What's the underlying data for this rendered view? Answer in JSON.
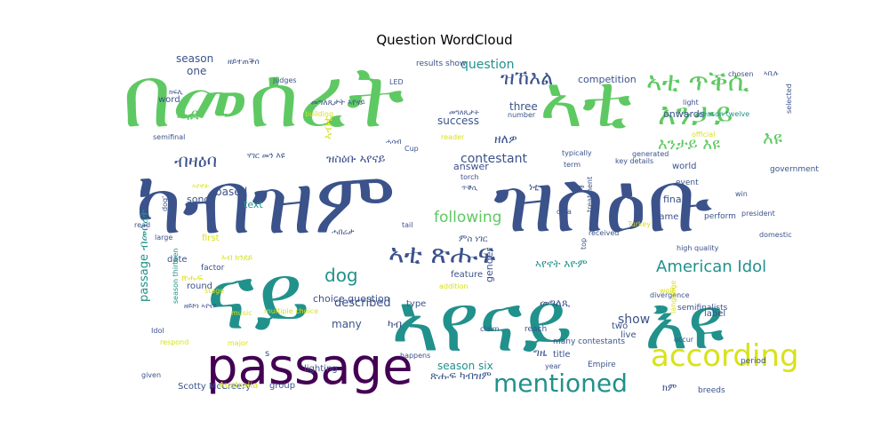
{
  "chart_data": {
    "type": "wordcloud",
    "title": "Question WordCloud",
    "colormap": "viridis",
    "words": [
      {
        "text": "በመሰረት",
        "weight": 100,
        "color": "#5ec962"
      },
      {
        "text": "ኣቲ",
        "weight": 95,
        "color": "#5ec962"
      },
      {
        "text": "ካብዝም",
        "weight": 98,
        "color": "#3b528b"
      },
      {
        "text": "ዝስዕቡ",
        "weight": 98,
        "color": "#3b528b"
      },
      {
        "text": "ናይ",
        "weight": 90,
        "color": "#21918c"
      },
      {
        "text": "ኣየናይ",
        "weight": 88,
        "color": "#21918c"
      },
      {
        "text": "እዩ",
        "weight": 80,
        "color": "#21918c"
      },
      {
        "text": "passage",
        "weight": 62,
        "color": "#440154"
      },
      {
        "text": "according",
        "weight": 38,
        "color": "#d8e219"
      },
      {
        "text": "mentioned",
        "weight": 36,
        "color": "#21918c"
      },
      {
        "text": "ኣቲ ጥቕሲ",
        "weight": 30,
        "color": "#5ec962"
      },
      {
        "text": "እንታይ",
        "weight": 30,
        "color": "#5ec962"
      },
      {
        "text": "እዩ",
        "weight": 28,
        "color": "#5ec962"
      },
      {
        "text": "ኣቲ ጽሑፍ",
        "weight": 26,
        "color": "#3b528b"
      },
      {
        "text": "American Idol",
        "weight": 22,
        "color": "#21918c"
      },
      {
        "text": "ዝኸእል",
        "weight": 20,
        "color": "#3b528b"
      },
      {
        "text": "እንታይ እዩ",
        "weight": 18,
        "color": "#5ec962"
      },
      {
        "text": "following",
        "weight": 18,
        "color": "#5ec962"
      },
      {
        "text": "ብዛዕባ",
        "weight": 18,
        "color": "#3b528b"
      },
      {
        "text": "passage ብመሰረት",
        "weight": 16,
        "color": "#21918c"
      },
      {
        "text": "dog",
        "weight": 16,
        "color": "#21918c"
      },
      {
        "text": "question",
        "weight": 14,
        "color": "#21918c"
      },
      {
        "text": "contestant",
        "weight": 13,
        "color": "#3b528b"
      },
      {
        "text": "ዘለዎ",
        "weight": 13,
        "color": "#3b528b"
      },
      {
        "text": "ዝስዕቡ ኣየናይ",
        "weight": 13,
        "color": "#3b528b"
      },
      {
        "text": "ሓደ",
        "weight": 13,
        "color": "#5ec962"
      },
      {
        "text": "ኣብቲ",
        "weight": 12,
        "color": "#d8e219"
      },
      {
        "text": "described",
        "weight": 12,
        "color": "#3b528b"
      },
      {
        "text": "ኣየኖት እዮም",
        "weight": 12,
        "color": "#21918c"
      },
      {
        "text": "show",
        "weight": 12,
        "color": "#3b528b"
      },
      {
        "text": "season six",
        "weight": 11,
        "color": "#21918c"
      },
      {
        "text": "choice question",
        "weight": 11,
        "color": "#3b528b"
      },
      {
        "text": "መግለጺ",
        "weight": 11,
        "color": "#3b528b"
      },
      {
        "text": "ጽሑፍ ካብዝም",
        "weight": 10,
        "color": "#3b528b"
      },
      {
        "text": "many",
        "weight": 10,
        "color": "#3b528b"
      },
      {
        "text": "season",
        "weight": 10,
        "color": "#3b528b"
      },
      {
        "text": "one",
        "weight": 10,
        "color": "#3b528b"
      },
      {
        "text": "word",
        "weight": 9,
        "color": "#3b528b"
      },
      {
        "text": "three",
        "weight": 8,
        "color": "#3b528b"
      },
      {
        "text": "success",
        "weight": 9,
        "color": "#3b528b"
      },
      {
        "text": "onwards",
        "weight": 9,
        "color": "#3b528b"
      },
      {
        "text": "final",
        "weight": 9,
        "color": "#3b528b"
      },
      {
        "text": "world",
        "weight": 9,
        "color": "#3b528b"
      },
      {
        "text": "song",
        "weight": 8,
        "color": "#3b528b"
      },
      {
        "text": "text",
        "weight": 9,
        "color": "#21918c"
      },
      {
        "text": "first",
        "weight": 9,
        "color": "#d8e219"
      },
      {
        "text": "based",
        "weight": 8,
        "color": "#3b528b"
      },
      {
        "text": "ካብ",
        "weight": 9,
        "color": "#3b528b"
      },
      {
        "text": "ነቲ",
        "weight": 9,
        "color": "#3b528b"
      },
      {
        "text": "ግዜ",
        "weight": 9,
        "color": "#3b528b"
      },
      {
        "text": "ክም",
        "weight": 9,
        "color": "#3b528b"
      },
      {
        "text": "name",
        "weight": 9,
        "color": "#3b528b"
      },
      {
        "text": "gender",
        "weight": 8,
        "color": "#3b528b"
      },
      {
        "text": "answer",
        "weight": 8,
        "color": "#3b528b"
      },
      {
        "text": "group",
        "weight": 8,
        "color": "#3b528b"
      },
      {
        "text": "Scotty McCreery",
        "weight": 7,
        "color": "#3b528b"
      },
      {
        "text": "ሃገር መን እዩ",
        "weight": 7,
        "color": "#3b528b"
      },
      {
        "text": "መግለጺታት ኣየናይ",
        "weight": 7,
        "color": "#3b528b"
      },
      {
        "text": "ዘይተጠቕሰ",
        "weight": 6,
        "color": "#3b528b"
      },
      {
        "text": "results show",
        "weight": 6,
        "color": "#3b528b"
      },
      {
        "text": "competition",
        "weight": 6,
        "color": "#3b528b"
      },
      {
        "text": "round",
        "weight": 7,
        "color": "#3b528b"
      },
      {
        "text": "date",
        "weight": 7,
        "color": "#3b528b"
      },
      {
        "text": "factor",
        "weight": 7,
        "color": "#3b528b"
      },
      {
        "text": "feature",
        "weight": 6,
        "color": "#3b528b"
      },
      {
        "text": "title",
        "weight": 7,
        "color": "#3b528b"
      },
      {
        "text": "two",
        "weight": 7,
        "color": "#3b528b"
      },
      {
        "text": "live",
        "weight": 7,
        "color": "#3b528b"
      },
      {
        "text": "label",
        "weight": 7,
        "color": "#3b528b"
      },
      {
        "text": "type",
        "weight": 7,
        "color": "#3b528b"
      },
      {
        "text": "reach",
        "weight": 7,
        "color": "#3b528b"
      },
      {
        "text": "lighting",
        "weight": 7,
        "color": "#3b528b"
      },
      {
        "text": "many contestants",
        "weight": 6,
        "color": "#3b528b"
      },
      {
        "text": "Empire",
        "weight": 6,
        "color": "#3b528b"
      },
      {
        "text": "period",
        "weight": 6,
        "color": "#3b528b"
      },
      {
        "text": "breeds",
        "weight": 6,
        "color": "#3b528b"
      },
      {
        "text": "semifinalists",
        "weight": 6,
        "color": "#3b528b"
      },
      {
        "text": "perform",
        "weight": 6,
        "color": "#3b528b"
      },
      {
        "text": "event",
        "weight": 6,
        "color": "#3b528b"
      },
      {
        "text": "government",
        "weight": 6,
        "color": "#3b528b"
      },
      {
        "text": "key details",
        "weight": 6,
        "color": "#3b528b"
      },
      {
        "text": "received",
        "weight": 6,
        "color": "#3b528b"
      },
      {
        "text": "year",
        "weight": 6,
        "color": "#3b528b"
      },
      {
        "text": "term",
        "weight": 6,
        "color": "#3b528b"
      },
      {
        "text": "win",
        "weight": 5,
        "color": "#3b528b"
      },
      {
        "text": "diva",
        "weight": 5,
        "color": "#3b528b"
      },
      {
        "text": "tail",
        "weight": 5,
        "color": "#3b528b"
      },
      {
        "text": "treatment",
        "weight": 5,
        "color": "#3b528b"
      },
      {
        "text": "high quality",
        "weight": 5,
        "color": "#3b528b"
      },
      {
        "text": "season twelve",
        "weight": 5,
        "color": "#21918c"
      },
      {
        "text": "season thirteen",
        "weight": 5,
        "color": "#21918c"
      },
      {
        "text": "multiple choice",
        "weight": 5,
        "color": "#d8e219"
      },
      {
        "text": "Idol",
        "weight": 5,
        "color": "#3b528b"
      },
      {
        "text": "music",
        "weight": 5,
        "color": "#d8e219"
      },
      {
        "text": "stage",
        "weight": 5,
        "color": "#d8e219"
      },
      {
        "text": "respond",
        "weight": 5,
        "color": "#d8e219"
      },
      {
        "text": "claim",
        "weight": 5,
        "color": "#3b528b"
      },
      {
        "text": "read",
        "weight": 5,
        "color": "#3b528b"
      },
      {
        "text": "large",
        "weight": 5,
        "color": "#3b528b"
      },
      {
        "text": "reader",
        "weight": 5,
        "color": "#d8e219"
      },
      {
        "text": "Cup",
        "weight": 5,
        "color": "#3b528b"
      },
      {
        "text": "torch",
        "weight": 5,
        "color": "#3b528b"
      },
      {
        "text": "typically",
        "weight": 5,
        "color": "#3b528b"
      },
      {
        "text": "generated",
        "weight": 5,
        "color": "#3b528b"
      },
      {
        "text": "light",
        "weight": 5,
        "color": "#3b528b"
      },
      {
        "text": "chosen",
        "weight": 5,
        "color": "#3b528b"
      },
      {
        "text": "judges",
        "weight": 5,
        "color": "#3b528b"
      },
      {
        "text": "semifinal",
        "weight": 5,
        "color": "#3b528b"
      },
      {
        "text": "happens",
        "weight": 5,
        "color": "#3b528b"
      },
      {
        "text": "occur",
        "weight": 5,
        "color": "#3b528b"
      },
      {
        "text": "divergence",
        "weight": 5,
        "color": "#3b528b"
      },
      {
        "text": "president",
        "weight": 5,
        "color": "#3b528b"
      },
      {
        "text": "domestic",
        "weight": 5,
        "color": "#3b528b"
      },
      {
        "text": "selected",
        "weight": 5,
        "color": "#3b528b"
      },
      {
        "text": "major",
        "weight": 5,
        "color": "#d8e219"
      },
      {
        "text": "given",
        "weight": 5,
        "color": "#3b528b"
      },
      {
        "text": "building",
        "weight": 5,
        "color": "#d8e219"
      },
      {
        "text": "number",
        "weight": 5,
        "color": "#3b528b"
      },
      {
        "text": "LED",
        "weight": 5,
        "color": "#3b528b"
      },
      {
        "text": "addition",
        "weight": 5,
        "color": "#d8e219"
      },
      {
        "text": "top",
        "weight": 5,
        "color": "#3b528b"
      },
      {
        "text": "dog'",
        "weight": 5,
        "color": "#3b528b"
      },
      {
        "text": "language",
        "weight": 5,
        "color": "#d8e219"
      },
      {
        "text": "Turkey",
        "weight": 5,
        "color": "#d8e219"
      },
      {
        "text": "official",
        "weight": 5,
        "color": "#d8e219"
      },
      {
        "text": "wolf",
        "weight": 5,
        "color": "#d8e219"
      },
      {
        "text": "Australia",
        "weight": 5,
        "color": "#d8e219"
      },
      {
        "text": "s",
        "weight": 5,
        "color": "#3b528b"
      },
      {
        "text": "ኣብ ክንደይ",
        "weight": 6,
        "color": "#d8e219"
      },
      {
        "text": "ጽሑፍ",
        "weight": 6,
        "color": "#d8e219"
      },
      {
        "text": "ሓበሬታ",
        "weight": 6,
        "color": "#3b528b"
      },
      {
        "text": "ምስ ነገር",
        "weight": 6,
        "color": "#3b528b"
      },
      {
        "text": "ኣየኖት",
        "weight": 6,
        "color": "#d8e219"
      },
      {
        "text": "ጥቕሲ",
        "weight": 6,
        "color": "#3b528b"
      },
      {
        "text": "ኣቶም",
        "weight": 5,
        "color": "#3b528b"
      },
      {
        "text": "ዘይኮነ ኣየናይ",
        "weight": 5,
        "color": "#3b528b"
      },
      {
        "text": "መግለጺታት",
        "weight": 5,
        "color": "#3b528b"
      },
      {
        "text": "ክፍሊ",
        "weight": 5,
        "color": "#3b528b"
      },
      {
        "text": "ኣቢሉ",
        "weight": 5,
        "color": "#3b528b"
      },
      {
        "text": "ሓሳብ",
        "weight": 5,
        "color": "#3b528b"
      },
      {
        "text": "ንምንታይ",
        "weight": 5,
        "color": "#3b528b"
      },
      {
        "text": "ዝኸውን",
        "weight": 5,
        "color": "#3b528b"
      }
    ]
  }
}
